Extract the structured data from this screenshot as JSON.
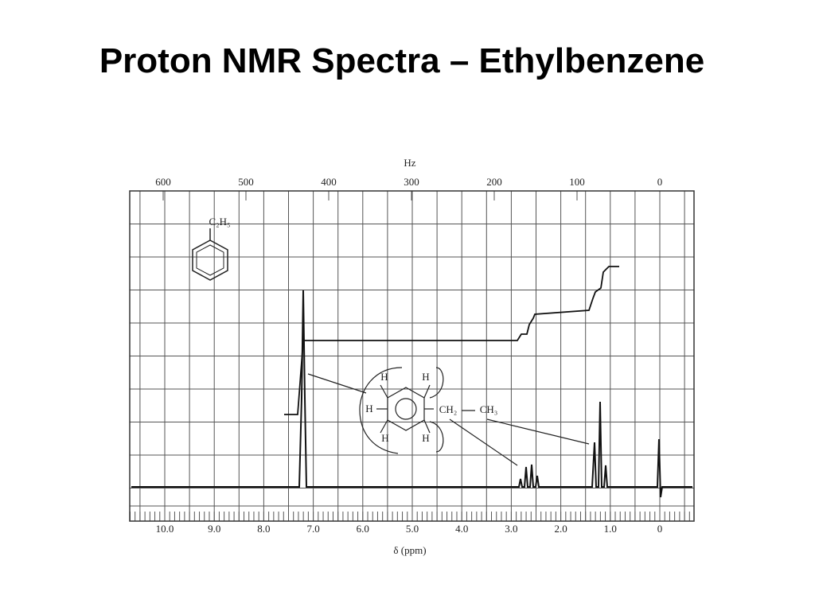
{
  "title": "Proton NMR Spectra – Ethylbenzene",
  "figure": {
    "top_axis_label": "Hz",
    "top_ticks": [
      "600",
      "500",
      "400",
      "300",
      "200",
      "100",
      "0"
    ],
    "bottom_axis_label": "δ (ppm)",
    "bottom_ticks": [
      "10.0",
      "9.0",
      "8.0",
      "7.0",
      "6.0",
      "5.0",
      "4.0",
      "3.0",
      "2.0",
      "1.0",
      "0"
    ],
    "structure_label": "C₂H₅",
    "molecule": {
      "h_labels": [
        "H",
        "H",
        "H",
        "H",
        "H"
      ],
      "ch2": "CH₂",
      "ch3": "CH₃"
    }
  }
}
